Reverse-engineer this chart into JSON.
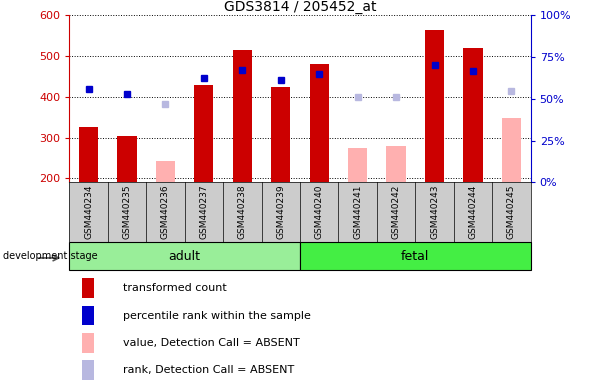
{
  "title": "GDS3814 / 205452_at",
  "samples": [
    "GSM440234",
    "GSM440235",
    "GSM440236",
    "GSM440237",
    "GSM440238",
    "GSM440239",
    "GSM440240",
    "GSM440241",
    "GSM440242",
    "GSM440243",
    "GSM440244",
    "GSM440245"
  ],
  "red_bars": [
    325,
    305,
    null,
    430,
    515,
    425,
    480,
    null,
    null,
    565,
    520,
    null
  ],
  "pink_bars": [
    null,
    null,
    242,
    null,
    null,
    null,
    null,
    275,
    280,
    null,
    null,
    348
  ],
  "blue_squares": [
    420,
    407,
    null,
    447,
    467,
    442,
    455,
    null,
    null,
    477,
    463,
    null
  ],
  "lavender_squares": [
    null,
    null,
    382,
    null,
    null,
    null,
    null,
    400,
    400,
    null,
    null,
    415
  ],
  "ylim_left": [
    190,
    600
  ],
  "ylim_right": [
    0,
    100
  ],
  "yticks_left": [
    200,
    300,
    400,
    500,
    600
  ],
  "yticks_right": [
    0,
    25,
    50,
    75,
    100
  ],
  "left_axis_color": "#cc0000",
  "right_axis_color": "#0000cc",
  "bar_width": 0.5,
  "red_color": "#cc0000",
  "pink_color": "#ffb0b0",
  "blue_color": "#0000cc",
  "lavender_color": "#b8b8e0",
  "adult_color": "#99ee99",
  "fetal_color": "#44ee44",
  "legend_items": [
    {
      "label": "transformed count",
      "color": "#cc0000"
    },
    {
      "label": "percentile rank within the sample",
      "color": "#0000cc"
    },
    {
      "label": "value, Detection Call = ABSENT",
      "color": "#ffb0b0"
    },
    {
      "label": "rank, Detection Call = ABSENT",
      "color": "#b8b8e0"
    }
  ],
  "background_color": "#ffffff",
  "tick_area_color": "#cccccc",
  "adult_n": 6,
  "fetal_n": 6
}
